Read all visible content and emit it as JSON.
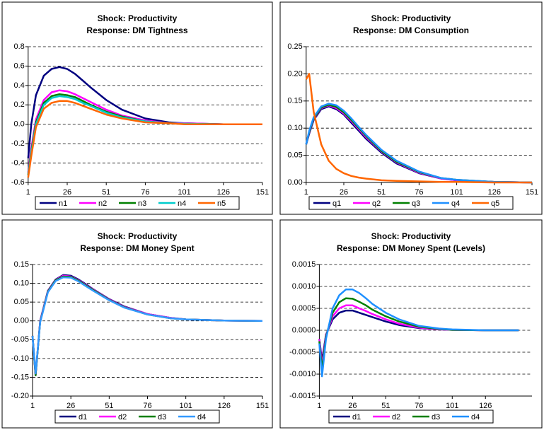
{
  "chart_data": [
    {
      "type": "line",
      "title": "Shock: Productivity",
      "subtitle": "Response: DM Tightness",
      "x": [
        1,
        3,
        6,
        11,
        16,
        21,
        26,
        31,
        36,
        41,
        51,
        61,
        76,
        91,
        101,
        126,
        151
      ],
      "series": [
        {
          "name": "n1",
          "color": "#000080",
          "values": [
            -0.35,
            0.0,
            0.3,
            0.5,
            0.57,
            0.59,
            0.57,
            0.52,
            0.45,
            0.38,
            0.25,
            0.15,
            0.06,
            0.02,
            0.01,
            0.0,
            0.0
          ]
        },
        {
          "name": "n2",
          "color": "#ff00ff",
          "values": [
            -0.5,
            -0.25,
            0.05,
            0.25,
            0.33,
            0.35,
            0.34,
            0.31,
            0.27,
            0.23,
            0.15,
            0.09,
            0.04,
            0.01,
            0.01,
            0.0,
            0.0
          ]
        },
        {
          "name": "n3",
          "color": "#008000",
          "values": [
            -0.52,
            -0.28,
            0.02,
            0.22,
            0.29,
            0.31,
            0.3,
            0.28,
            0.24,
            0.2,
            0.13,
            0.08,
            0.03,
            0.01,
            0.005,
            0.0,
            0.0
          ]
        },
        {
          "name": "n4",
          "color": "#00cccc",
          "values": [
            -0.53,
            -0.3,
            0.0,
            0.2,
            0.27,
            0.29,
            0.28,
            0.26,
            0.22,
            0.19,
            0.12,
            0.07,
            0.03,
            0.01,
            0.005,
            0.0,
            0.0
          ]
        },
        {
          "name": "n5",
          "color": "#ff6600",
          "values": [
            -0.55,
            -0.33,
            -0.03,
            0.16,
            0.22,
            0.24,
            0.24,
            0.22,
            0.19,
            0.16,
            0.1,
            0.06,
            0.02,
            0.01,
            0.0,
            0.0,
            0.0
          ]
        }
      ],
      "xlim": [
        1,
        151
      ],
      "xticks": [
        1,
        26,
        51,
        76,
        101,
        126,
        151
      ],
      "ylim": [
        -0.6,
        0.8
      ],
      "yticks": [
        -0.6,
        -0.4,
        -0.2,
        {
          "value": 0,
          "label": "0.0"
        },
        0.2,
        0.4,
        0.6,
        0.8
      ],
      "grid": true,
      "legend": "bottom"
    },
    {
      "type": "line",
      "title": "Shock: Productivity",
      "subtitle": "Response: DM Consumption",
      "x": [
        1,
        3,
        6,
        11,
        16,
        21,
        26,
        31,
        36,
        41,
        51,
        61,
        76,
        91,
        101,
        126,
        151
      ],
      "series": [
        {
          "name": "q1",
          "color": "#000080",
          "values": [
            0.07,
            0.09,
            0.115,
            0.135,
            0.14,
            0.135,
            0.125,
            0.11,
            0.095,
            0.08,
            0.055,
            0.035,
            0.017,
            0.007,
            0.004,
            0.001,
            0.0
          ]
        },
        {
          "name": "q2",
          "color": "#ff00ff",
          "values": [
            0.07,
            0.092,
            0.117,
            0.137,
            0.142,
            0.137,
            0.127,
            0.113,
            0.098,
            0.083,
            0.057,
            0.037,
            0.018,
            0.007,
            0.004,
            0.001,
            0.0
          ]
        },
        {
          "name": "q3",
          "color": "#008000",
          "values": [
            0.07,
            0.093,
            0.118,
            0.138,
            0.143,
            0.139,
            0.129,
            0.115,
            0.1,
            0.085,
            0.058,
            0.038,
            0.019,
            0.008,
            0.005,
            0.001,
            0.0
          ]
        },
        {
          "name": "q4",
          "color": "#1e90ff",
          "values": [
            0.07,
            0.095,
            0.12,
            0.14,
            0.145,
            0.142,
            0.132,
            0.118,
            0.102,
            0.087,
            0.06,
            0.04,
            0.02,
            0.008,
            0.005,
            0.001,
            0.0
          ]
        },
        {
          "name": "q5",
          "color": "#ff6600",
          "values": [
            0.19,
            0.2,
            0.13,
            0.07,
            0.04,
            0.025,
            0.017,
            0.012,
            0.009,
            0.007,
            0.004,
            0.003,
            0.002,
            0.001,
            0.001,
            0.0,
            0.0
          ]
        }
      ],
      "xlim": [
        1,
        151
      ],
      "xticks": [
        1,
        26,
        51,
        76,
        101,
        126,
        151
      ],
      "ylim": [
        0,
        0.25
      ],
      "yticks": [
        {
          "value": 0,
          "label": "0.00"
        },
        0.05,
        {
          "value": 0.1,
          "label": "0.10"
        },
        0.15,
        {
          "value": 0.2,
          "label": "0.20"
        },
        0.25
      ],
      "grid": true,
      "legend": "bottom"
    },
    {
      "type": "line",
      "title": "Shock: Productivity",
      "subtitle": "Response: DM Money Spent",
      "x": [
        1,
        3,
        6,
        11,
        16,
        21,
        26,
        31,
        36,
        41,
        51,
        61,
        76,
        91,
        101,
        126,
        151
      ],
      "series": [
        {
          "name": "d1",
          "color": "#000080",
          "values": [
            -0.04,
            -0.145,
            0.0,
            0.08,
            0.11,
            0.122,
            0.12,
            0.11,
            0.097,
            0.083,
            0.058,
            0.038,
            0.018,
            0.008,
            0.004,
            0.001,
            0.0
          ]
        },
        {
          "name": "d2",
          "color": "#ff00ff",
          "values": [
            -0.04,
            -0.145,
            0.0,
            0.079,
            0.109,
            0.12,
            0.118,
            0.108,
            0.095,
            0.082,
            0.057,
            0.037,
            0.018,
            0.008,
            0.004,
            0.001,
            0.0
          ]
        },
        {
          "name": "d3",
          "color": "#008000",
          "values": [
            -0.04,
            -0.145,
            -0.002,
            0.078,
            0.108,
            0.118,
            0.117,
            0.107,
            0.094,
            0.081,
            0.056,
            0.036,
            0.017,
            0.007,
            0.004,
            0.001,
            0.0
          ]
        },
        {
          "name": "d4",
          "color": "#3399ff",
          "values": [
            -0.04,
            -0.14,
            -0.004,
            0.076,
            0.106,
            0.116,
            0.115,
            0.105,
            0.092,
            0.079,
            0.055,
            0.035,
            0.017,
            0.007,
            0.004,
            0.001,
            0.0
          ]
        }
      ],
      "xlim": [
        1,
        151
      ],
      "xticks": [
        1,
        26,
        51,
        76,
        101,
        126,
        151
      ],
      "ylim": [
        -0.2,
        0.15
      ],
      "yticks": [
        {
          "value": -0.2,
          "label": "-0.20"
        },
        -0.15,
        {
          "value": -0.1,
          "label": "-0.10"
        },
        -0.05,
        {
          "value": 0,
          "label": "0.00"
        },
        0.05,
        {
          "value": 0.1,
          "label": "0.10"
        },
        0.15
      ],
      "grid": true,
      "legend": "bottom"
    },
    {
      "type": "line",
      "title": "Shock: Productivity",
      "subtitle": "Response: DM Money Spent  (Levels)",
      "x": [
        1,
        3,
        6,
        11,
        16,
        21,
        26,
        31,
        36,
        41,
        51,
        61,
        76,
        91,
        101,
        126,
        151
      ],
      "series": [
        {
          "name": "d1",
          "color": "#000080",
          "values": [
            -0.0002,
            -0.0007,
            -0.0001,
            0.00025,
            0.0004,
            0.00045,
            0.00045,
            0.0004,
            0.00035,
            0.0003,
            0.0002,
            0.00012,
            5e-05,
            2e-05,
            1e-05,
            0.0,
            0.0
          ]
        },
        {
          "name": "d2",
          "color": "#ff00ff",
          "values": [
            -0.0002,
            -0.0008,
            -0.00012,
            0.00032,
            0.0005,
            0.00057,
            0.00057,
            0.0005,
            0.00044,
            0.00037,
            0.00025,
            0.00015,
            6e-05,
            2e-05,
            1e-05,
            0.0,
            0.0
          ]
        },
        {
          "name": "d3",
          "color": "#008000",
          "values": [
            -0.00025,
            -0.0009,
            -0.00015,
            0.0004,
            0.00064,
            0.00073,
            0.00072,
            0.00065,
            0.00057,
            0.00047,
            0.00032,
            0.0002,
            8e-05,
            3e-05,
            1e-05,
            0.0,
            0.0
          ]
        },
        {
          "name": "d4",
          "color": "#1e90ff",
          "values": [
            -0.0003,
            -0.00105,
            -0.0002,
            0.0005,
            0.0008,
            0.00093,
            0.00093,
            0.00085,
            0.00073,
            0.0006,
            0.0004,
            0.00025,
            0.0001,
            4e-05,
            2e-05,
            0.0,
            0.0
          ]
        }
      ],
      "xlim": [
        1,
        161
      ],
      "xticks": [
        1,
        26,
        51,
        76,
        101,
        126
      ],
      "ylim": [
        -0.0015,
        0.0015
      ],
      "yticks": [
        -0.0015,
        {
          "value": -0.001,
          "label": "-0.0010"
        },
        -0.0005,
        {
          "value": 0,
          "label": "0.0000"
        },
        0.0005,
        {
          "value": 0.001,
          "label": "0.0010"
        },
        0.0015
      ],
      "grid": true,
      "legend": "bottom"
    }
  ]
}
